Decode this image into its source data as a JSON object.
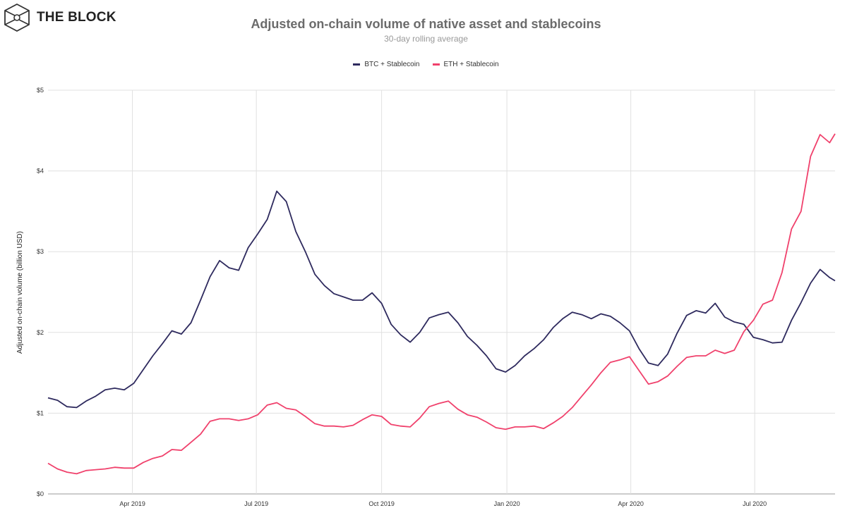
{
  "logo": {
    "text": "THE BLOCK",
    "icon": "cube-hexagon-icon"
  },
  "chart_data": {
    "type": "line",
    "title": "Adjusted on-chain volume of native asset and stablecoins",
    "subtitle": "30-day rolling average",
    "ylabel": "Adjusted on-chain volume (billion USD)",
    "xlabel": "",
    "ylim": [
      0,
      5
    ],
    "xlim": [
      "2019-01-29",
      "2020-08-29"
    ],
    "yticks": [
      0,
      1,
      2,
      3,
      4,
      5
    ],
    "ytick_labels": [
      "$0",
      "$1",
      "$2",
      "$3",
      "$4",
      "$5"
    ],
    "xticks": [
      "2019-04-01",
      "2019-07-01",
      "2019-10-01",
      "2020-01-01",
      "2020-04-01",
      "2020-07-01"
    ],
    "xtick_labels": [
      "Apr 2019",
      "Jul 2019",
      "Oct 2019",
      "Jan 2020",
      "Apr 2020",
      "Jul 2020"
    ],
    "grid": true,
    "legend_position": "top-center",
    "x": [
      "2019-01-29",
      "2019-02-05",
      "2019-02-12",
      "2019-02-19",
      "2019-02-26",
      "2019-03-05",
      "2019-03-12",
      "2019-03-19",
      "2019-03-26",
      "2019-04-02",
      "2019-04-09",
      "2019-04-16",
      "2019-04-23",
      "2019-04-30",
      "2019-05-07",
      "2019-05-14",
      "2019-05-21",
      "2019-05-28",
      "2019-06-04",
      "2019-06-11",
      "2019-06-18",
      "2019-06-25",
      "2019-07-02",
      "2019-07-09",
      "2019-07-16",
      "2019-07-23",
      "2019-07-30",
      "2019-08-06",
      "2019-08-13",
      "2019-08-20",
      "2019-08-27",
      "2019-09-03",
      "2019-09-10",
      "2019-09-17",
      "2019-09-24",
      "2019-10-01",
      "2019-10-08",
      "2019-10-15",
      "2019-10-22",
      "2019-10-29",
      "2019-11-05",
      "2019-11-12",
      "2019-11-19",
      "2019-11-26",
      "2019-12-03",
      "2019-12-10",
      "2019-12-17",
      "2019-12-24",
      "2019-12-31",
      "2020-01-07",
      "2020-01-14",
      "2020-01-21",
      "2020-01-28",
      "2020-02-04",
      "2020-02-11",
      "2020-02-18",
      "2020-02-25",
      "2020-03-03",
      "2020-03-10",
      "2020-03-17",
      "2020-03-24",
      "2020-03-31",
      "2020-04-07",
      "2020-04-14",
      "2020-04-21",
      "2020-04-28",
      "2020-05-05",
      "2020-05-12",
      "2020-05-19",
      "2020-05-26",
      "2020-06-02",
      "2020-06-09",
      "2020-06-16",
      "2020-06-23",
      "2020-06-30",
      "2020-07-07",
      "2020-07-14",
      "2020-07-21",
      "2020-07-28",
      "2020-08-04",
      "2020-08-11",
      "2020-08-18",
      "2020-08-25",
      "2020-08-29"
    ],
    "series": [
      {
        "name": "BTC + Stablecoin",
        "color": "#2e2a5e",
        "values": [
          1.19,
          1.16,
          1.08,
          1.07,
          1.15,
          1.21,
          1.29,
          1.31,
          1.29,
          1.37,
          1.54,
          1.71,
          1.86,
          2.02,
          1.98,
          2.12,
          2.4,
          2.69,
          2.89,
          2.8,
          2.77,
          3.05,
          3.22,
          3.4,
          3.75,
          3.62,
          3.25,
          3.0,
          2.72,
          2.58,
          2.48,
          2.44,
          2.4,
          2.4,
          2.49,
          2.36,
          2.1,
          1.97,
          1.88,
          2.0,
          2.18,
          2.22,
          2.25,
          2.12,
          1.95,
          1.84,
          1.71,
          1.55,
          1.51,
          1.59,
          1.71,
          1.8,
          1.91,
          2.06,
          2.17,
          2.25,
          2.22,
          2.17,
          2.23,
          2.2,
          2.12,
          2.02,
          1.8,
          1.62,
          1.59,
          1.73,
          1.99,
          2.21,
          2.27,
          2.24,
          2.36,
          2.19,
          2.13,
          2.1,
          1.94,
          1.91,
          1.87,
          1.88,
          2.15,
          2.37,
          2.61,
          2.78,
          2.68,
          2.64
        ]
      },
      {
        "name": "ETH + Stablecoin",
        "color": "#f0416c",
        "values": [
          0.38,
          0.31,
          0.27,
          0.25,
          0.29,
          0.3,
          0.31,
          0.33,
          0.32,
          0.32,
          0.39,
          0.44,
          0.47,
          0.55,
          0.54,
          0.64,
          0.74,
          0.9,
          0.93,
          0.93,
          0.91,
          0.93,
          0.98,
          1.1,
          1.13,
          1.06,
          1.04,
          0.96,
          0.87,
          0.84,
          0.84,
          0.83,
          0.85,
          0.92,
          0.98,
          0.96,
          0.86,
          0.84,
          0.83,
          0.94,
          1.08,
          1.12,
          1.15,
          1.05,
          0.98,
          0.95,
          0.89,
          0.82,
          0.8,
          0.83,
          0.83,
          0.84,
          0.81,
          0.88,
          0.96,
          1.07,
          1.21,
          1.35,
          1.5,
          1.63,
          1.66,
          1.7,
          1.53,
          1.36,
          1.39,
          1.46,
          1.58,
          1.69,
          1.71,
          1.71,
          1.78,
          1.74,
          1.78,
          2.01,
          2.15,
          2.35,
          2.4,
          2.74,
          3.28,
          3.5,
          4.18,
          4.45,
          4.35,
          4.46
        ]
      }
    ]
  }
}
